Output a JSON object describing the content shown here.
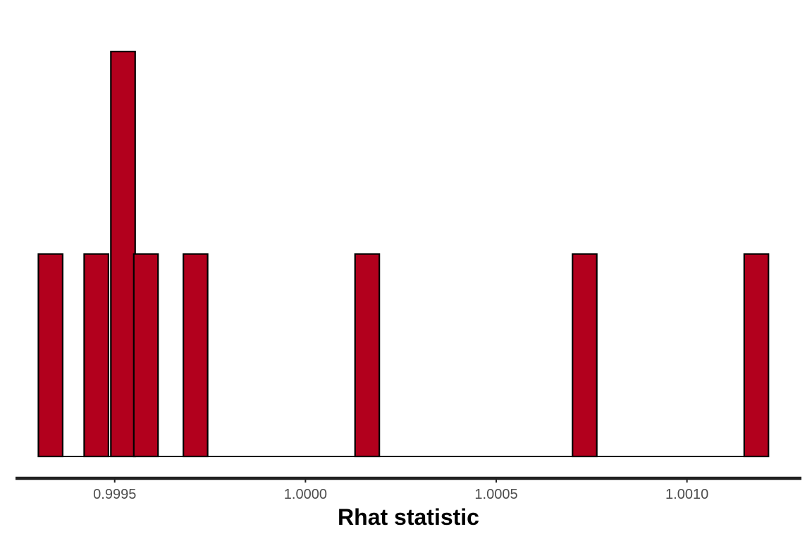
{
  "chart_data": {
    "type": "bar",
    "title": "",
    "xlabel": "Rhat statistic",
    "ylabel": "",
    "x_ticks": [
      {
        "value": 0.9995,
        "label": "0.9995"
      },
      {
        "value": 1.0,
        "label": "1.0000"
      },
      {
        "value": 1.0005,
        "label": "1.0005"
      },
      {
        "value": 1.001,
        "label": "1.0010"
      }
    ],
    "xlim": [
      0.99924,
      1.0013
    ],
    "ylim": [
      0,
      2.15
    ],
    "bin_width": 6.36e-05,
    "bins": [
      {
        "start": 0.9993,
        "count": 1
      },
      {
        "start": 0.99942,
        "count": 1
      },
      {
        "start": 0.99949,
        "count": 2
      },
      {
        "start": 0.99955,
        "count": 1
      },
      {
        "start": 0.99968,
        "count": 1
      },
      {
        "start": 1.00013,
        "count": 1
      },
      {
        "start": 1.0007,
        "count": 1
      },
      {
        "start": 1.00115,
        "count": 1
      }
    ],
    "baseline_range": [
      0.9993,
      1.00121
    ],
    "grid": false,
    "legend": "none",
    "colors": {
      "bar_fill": "#b2001d",
      "bar_stroke": "#000000",
      "axis_line": "#222222",
      "tick_text": "#4d4d4d"
    }
  }
}
